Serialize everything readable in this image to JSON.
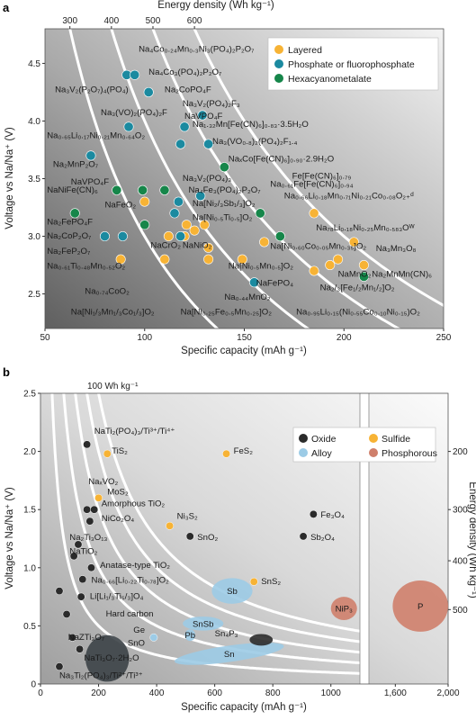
{
  "panel_a_label": "a",
  "panel_b_label": "b",
  "chart_data": [
    {
      "type": "scatter",
      "title": "",
      "xlabel": "Specific capacity (mAh g⁻¹)",
      "ylabel": "Voltage vs Na/Na⁺ (V)",
      "x2label": "Energy density (Wh kg⁻¹)",
      "xlim": [
        50,
        250
      ],
      "ylim": [
        2.2,
        4.8
      ],
      "xticks": [
        "50",
        "100",
        "150",
        "200",
        "250"
      ],
      "yticks": [
        "2.5",
        "3.0",
        "3.5",
        "4.0",
        "4.5"
      ],
      "x2ticks": [
        "300",
        "400",
        "500",
        "600"
      ],
      "energy_contours_wh_kg": [
        300,
        400,
        500,
        600
      ],
      "grid": false,
      "legend_position": "top-right",
      "colors": {
        "Layered": "#f7b335",
        "Phosphate or fluorophosphate": "#1b8aa0",
        "Hexacyanometalate": "#16864a"
      },
      "series": [
        {
          "name": "Layered",
          "points": [
            {
              "x": 100,
              "y": 3.3
            },
            {
              "x": 112,
              "y": 3.0
            },
            {
              "x": 120,
              "y": 3.0
            },
            {
              "x": 121,
              "y": 3.1
            },
            {
              "x": 125,
              "y": 3.05
            },
            {
              "x": 130,
              "y": 3.1
            },
            {
              "x": 132,
              "y": 2.9
            },
            {
              "x": 132,
              "y": 2.8
            },
            {
              "x": 110,
              "y": 2.8
            },
            {
              "x": 88,
              "y": 2.8
            },
            {
              "x": 149,
              "y": 2.8
            },
            {
              "x": 160,
              "y": 2.95
            },
            {
              "x": 185,
              "y": 2.7
            },
            {
              "x": 193,
              "y": 2.75
            },
            {
              "x": 197,
              "y": 2.8
            },
            {
              "x": 210,
              "y": 2.75
            },
            {
              "x": 185,
              "y": 3.2
            },
            {
              "x": 205,
              "y": 2.95
            }
          ]
        },
        {
          "name": "Phosphate or fluorophosphate",
          "points": [
            {
              "x": 73,
              "y": 3.7
            },
            {
              "x": 80,
              "y": 3.0
            },
            {
              "x": 89,
              "y": 3.0
            },
            {
              "x": 91,
              "y": 4.4
            },
            {
              "x": 95,
              "y": 4.4
            },
            {
              "x": 102,
              "y": 4.25
            },
            {
              "x": 92,
              "y": 3.95
            },
            {
              "x": 118,
              "y": 3.8
            },
            {
              "x": 120,
              "y": 3.95
            },
            {
              "x": 129,
              "y": 4.05
            },
            {
              "x": 132,
              "y": 3.8
            },
            {
              "x": 128,
              "y": 3.35
            },
            {
              "x": 117,
              "y": 3.3
            },
            {
              "x": 115,
              "y": 3.2
            },
            {
              "x": 118,
              "y": 3.0
            },
            {
              "x": 155,
              "y": 2.6
            }
          ]
        },
        {
          "name": "Hexacyanometalate",
          "points": [
            {
              "x": 65,
              "y": 3.2
            },
            {
              "x": 86,
              "y": 3.4
            },
            {
              "x": 99,
              "y": 3.4
            },
            {
              "x": 110,
              "y": 3.4
            },
            {
              "x": 100,
              "y": 3.1
            },
            {
              "x": 140,
              "y": 3.6
            },
            {
              "x": 158,
              "y": 3.2
            },
            {
              "x": 168,
              "y": 3.0
            },
            {
              "x": 210,
              "y": 2.65
            }
          ]
        }
      ],
      "labels": [
        {
          "text": "Na₄Co₀.₂₄Mn₀.₃Ni₃(PO₄)₂P₂O₇",
          "x": 97,
          "y": 4.6
        },
        {
          "text": "Na₄Co₃(PO₄)₂P₂O₇",
          "x": 102,
          "y": 4.4
        },
        {
          "text": "Na₂CoPO₄F",
          "x": 110,
          "y": 4.25
        },
        {
          "text": "Na₃V₂(PO₄)₂F₃",
          "x": 119,
          "y": 4.13
        },
        {
          "text": "Na₃V₂(P₂O₇)₄(PO₄)",
          "x": 55,
          "y": 4.25
        },
        {
          "text": "Na₃(VO)₂(PO₄)₂F",
          "x": 78,
          "y": 4.05
        },
        {
          "text": "NaVPO₄F",
          "x": 120,
          "y": 4.02
        },
        {
          "text": "Na₁.₃₂Mn[Fe(CN)₆]₀.₈₃·3.5H₂O",
          "x": 124,
          "y": 3.95
        },
        {
          "text": "Na₀.₆₅Li₀.₁₇Ni₀.₂₁Mn₀.₆₄O₂",
          "x": 51,
          "y": 3.85
        },
        {
          "text": "Na₃(VO₀.₈)₂(PO₄)₂F₁.₄",
          "x": 134,
          "y": 3.8
        },
        {
          "text": "NaₓCo[Fe(CN)₆]₀.₉₀·2.9H₂O",
          "x": 142,
          "y": 3.65
        },
        {
          "text": "Na₂MnP₂O₇",
          "x": 54,
          "y": 3.6
        },
        {
          "text": "Fe[Fe(CN)₆]₀.₇₉",
          "x": 174,
          "y": 3.5
        },
        {
          "text": "NaVPO₄F",
          "x": 63,
          "y": 3.45
        },
        {
          "text": "Na₃V₂(PO₄)₃",
          "x": 119,
          "y": 3.48
        },
        {
          "text": "Na₀.₆₁Fe[Fe(CN)₆]₀.₉₄",
          "x": 163,
          "y": 3.43
        },
        {
          "text": "NaNiFe(CN)₆",
          "x": 51,
          "y": 3.38
        },
        {
          "text": "Na₄Fe₃(PO₄)₂P₂O₇",
          "x": 122,
          "y": 3.38
        },
        {
          "text": "Na₀.₆₆Li₀.₁₈Mn₀.₇₁Ni₀.₂₁Co₀.₀₈O₂₊ᵈ",
          "x": 170,
          "y": 3.33
        },
        {
          "text": "NaFeO₂",
          "x": 80,
          "y": 3.25
        },
        {
          "text": "Na[Ni₂/₃Sb₁/₃]O₂",
          "x": 124,
          "y": 3.26
        },
        {
          "text": "Na[Ni₀.₅Ti₀.₅]O₂",
          "x": 124,
          "y": 3.14
        },
        {
          "text": "Na₂FePO₄F",
          "x": 51,
          "y": 3.1
        },
        {
          "text": "Na₂CoP₂O₇",
          "x": 51,
          "y": 2.98
        },
        {
          "text": "NaCrO₂",
          "x": 103,
          "y": 2.9
        },
        {
          "text": "NaNiO₂",
          "x": 119,
          "y": 2.9
        },
        {
          "text": "Na₇₈Li₀.₁₈Ni₀.₂₅Mn₀.₅₈₃Oᵂ",
          "x": 186,
          "y": 3.05
        },
        {
          "text": "Na₂FeP₂O₇",
          "x": 51,
          "y": 2.85
        },
        {
          "text": "Na[Ni₀.₆₀Co₀.₀₅Mn₀.₃₅]O₂",
          "x": 163,
          "y": 2.89
        },
        {
          "text": "Na₃Mn₃O₈",
          "x": 216,
          "y": 2.87
        },
        {
          "text": "Na₀.₆₁Ti₀.₄₈Mn₀.₅₂O₂",
          "x": 51,
          "y": 2.72
        },
        {
          "text": "Na[Ni₀.₅Mn₀.₅]O₂",
          "x": 142,
          "y": 2.72
        },
        {
          "text": "NaMnO₂",
          "x": 197,
          "y": 2.65
        },
        {
          "text": "Na₂MnMn(CN)₆",
          "x": 214,
          "y": 2.65
        },
        {
          "text": "NaFePO₄",
          "x": 156,
          "y": 2.57
        },
        {
          "text": "Na₂/₃[Fe₁/₂Mn₁/₂]O₂",
          "x": 188,
          "y": 2.53
        },
        {
          "text": "Na₀.₇₄CoO₂",
          "x": 70,
          "y": 2.5
        },
        {
          "text": "Na₀.₄₄MnO₂",
          "x": 140,
          "y": 2.45
        },
        {
          "text": "Na[Ni₁/₃Mn₁/₃Co₁/₃]O₂",
          "x": 63,
          "y": 2.32
        },
        {
          "text": "Na[Ni₀.₂₅Fe₀.₅Mn₀.₂₅]O₂",
          "x": 118,
          "y": 2.32
        },
        {
          "text": "Na₀.₉₅Li₀.₁₅(Ni₀.₅₅Co₀.₁₀Ni₀.₁₅)O₂",
          "x": 176,
          "y": 2.32
        }
      ]
    },
    {
      "type": "scatter",
      "title": "",
      "xlabel": "Specific capacity (mAh g⁻¹)",
      "ylabel": "Voltage vs Na/Na⁺ (V)",
      "y2label": "Energy density (Wh kg⁻¹)",
      "xlim": [
        0,
        2000
      ],
      "ylim": [
        0,
        2.5
      ],
      "xticks": [
        "0",
        "200",
        "400",
        "600",
        "800",
        "1000",
        "1,600",
        "2,000"
      ],
      "yticks": [
        "0",
        "0.5",
        "1.0",
        "1.5",
        "2.0",
        "2.5"
      ],
      "y2ticks": [
        "200",
        "300",
        "400",
        "500"
      ],
      "contour_label": "100 Wh kg⁻¹",
      "grid": false,
      "legend_position": "top-right",
      "colors": {
        "Oxide": "#2b2b2b",
        "Sulfide": "#f7b335",
        "Alloy": "#9ccbe6",
        "Phosphorous": "#cf7f6b"
      },
      "series": [
        {
          "name": "Oxide",
          "points": [
            {
              "x": 160,
              "y": 2.06
            },
            {
              "x": 160,
              "y": 1.5
            },
            {
              "x": 185,
              "y": 1.5
            },
            {
              "x": 170,
              "y": 1.4
            },
            {
              "x": 515,
              "y": 1.27
            },
            {
              "x": 940,
              "y": 1.46
            },
            {
              "x": 905,
              "y": 1.27
            },
            {
              "x": 130,
              "y": 1.2
            },
            {
              "x": 115,
              "y": 1.1
            },
            {
              "x": 175,
              "y": 1.0
            },
            {
              "x": 145,
              "y": 0.9
            },
            {
              "x": 140,
              "y": 0.75
            },
            {
              "x": 90,
              "y": 0.6
            },
            {
              "x": 65,
              "y": 0.8
            },
            {
              "x": 110,
              "y": 0.4
            },
            {
              "x": 135,
              "y": 0.3
            },
            {
              "x": 65,
              "y": 0.15
            }
          ]
        },
        {
          "name": "Sulfide",
          "points": [
            {
              "x": 230,
              "y": 1.98
            },
            {
              "x": 200,
              "y": 1.6
            },
            {
              "x": 445,
              "y": 1.36
            },
            {
              "x": 640,
              "y": 1.98
            },
            {
              "x": 735,
              "y": 0.88
            }
          ]
        },
        {
          "name": "Alloy",
          "points": [
            {
              "x": 390,
              "y": 0.4
            }
          ]
        },
        {
          "name": "Phosphorous",
          "points": []
        }
      ],
      "regions": [
        {
          "text": "Hard carbon",
          "cx": 230,
          "cy": 0.22,
          "rx": 75,
          "ry": 0.2,
          "kind": "Oxide"
        },
        {
          "text": "Sb",
          "cx": 660,
          "cy": 0.8,
          "rx": 70,
          "ry": 0.11,
          "kind": "Alloy"
        },
        {
          "text": "SnSb",
          "cx": 560,
          "cy": 0.52,
          "rx": 70,
          "ry": 0.06,
          "kind": "Alloy"
        },
        {
          "text": "Sn",
          "cx": 650,
          "cy": 0.26,
          "rx": 190,
          "ry": 0.07,
          "kind": "Alloy"
        },
        {
          "text": "Pb",
          "cx": 515,
          "cy": 0.42,
          "rx": 18,
          "ry": 0.05,
          "kind": "Alloy"
        },
        {
          "text": "NiP₃",
          "cx": 1045,
          "cy": 0.65,
          "rx": 45,
          "ry": 0.1,
          "kind": "Phosphorous"
        },
        {
          "text": "P",
          "cx": 1790,
          "cy": 0.67,
          "rx": 210,
          "ry": 0.22,
          "kind": "Phosphorous"
        },
        {
          "text": "SnO₂",
          "cx": 760,
          "cy": 0.38,
          "rx": 40,
          "ry": 0.05,
          "kind": "Oxide"
        }
      ],
      "labels": [
        {
          "text": "NaTi₂(PO₄)₃/Ti³⁺/Ti⁴⁺",
          "x": 185,
          "y": 2.15
        },
        {
          "text": "TiS₂",
          "x": 245,
          "y": 1.98
        },
        {
          "text": "FeS₂",
          "x": 665,
          "y": 1.98
        },
        {
          "text": "NaₓVO₂",
          "x": 165,
          "y": 1.72
        },
        {
          "text": "MoS₂",
          "x": 230,
          "y": 1.63
        },
        {
          "text": "Amorphous TiO₂",
          "x": 210,
          "y": 1.53
        },
        {
          "text": "Ni₃S₂",
          "x": 470,
          "y": 1.42
        },
        {
          "text": "NiCo₂O₄",
          "x": 210,
          "y": 1.4
        },
        {
          "text": "Fe₃O₄",
          "x": 965,
          "y": 1.43
        },
        {
          "text": "Na₂Ti₃O₁₃",
          "x": 100,
          "y": 1.24
        },
        {
          "text": "SnO₂",
          "x": 540,
          "y": 1.24
        },
        {
          "text": "Sb₂O₄",
          "x": 930,
          "y": 1.24
        },
        {
          "text": "NaTiO₂",
          "x": 100,
          "y": 1.12
        },
        {
          "text": "Anatase-type TiO₂",
          "x": 205,
          "y": 1.0
        },
        {
          "text": "Na₀.₆₆[Li₀.₂₂Ti₀.₇₈]O₂",
          "x": 175,
          "y": 0.87
        },
        {
          "text": "SnS₂",
          "x": 760,
          "y": 0.86
        },
        {
          "text": "Li[Li₁/₃Ti₅/₃]O₄",
          "x": 170,
          "y": 0.73
        },
        {
          "text": "Hard carbon",
          "x": 225,
          "y": 0.58
        },
        {
          "text": "Ge",
          "x": 320,
          "y": 0.44
        },
        {
          "text": "Sn₄P₃",
          "x": 600,
          "y": 0.41
        },
        {
          "text": "NaZTi₃O₇",
          "x": 95,
          "y": 0.38
        },
        {
          "text": "SnO",
          "x": 300,
          "y": 0.33
        },
        {
          "text": "NaTi₃O₇·2H₂O",
          "x": 150,
          "y": 0.2
        },
        {
          "text": "Na₃Ti₂(PO₄)₃/Ti²⁺/Ti³⁺",
          "x": 65,
          "y": 0.05
        }
      ]
    }
  ]
}
